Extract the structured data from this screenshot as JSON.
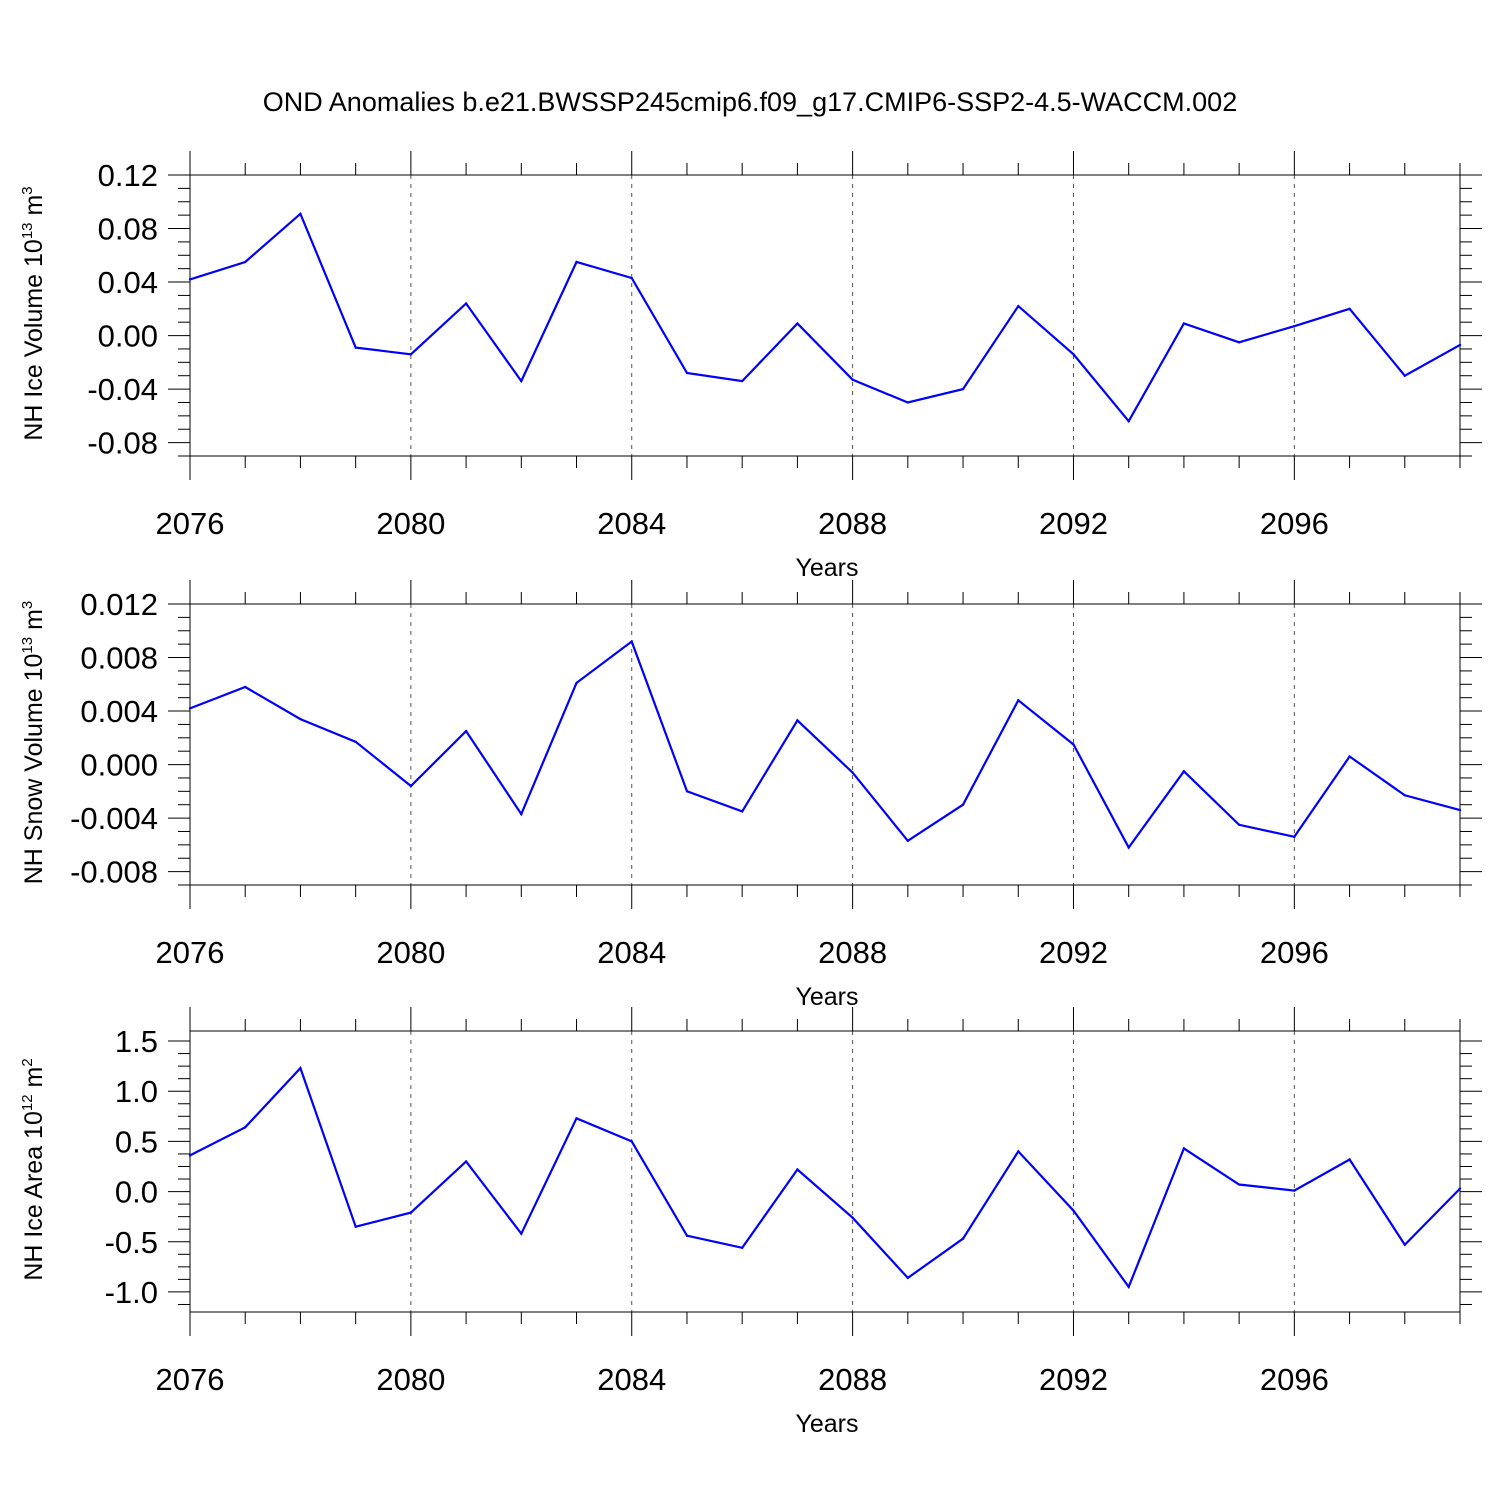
{
  "title": "OND Anomalies b.e21.BWSSP245cmip6.f09_g17.CMIP6-SSP2-4.5-WACCM.002",
  "line_color": "#0000ff",
  "chart_data": [
    {
      "type": "line",
      "ylabel": {
        "text": "NH Ice Volume 10",
        "exp": "13",
        "unit": " m",
        "unit_exp": "3"
      },
      "xlabel": "Years",
      "xlim": [
        2076,
        2099
      ],
      "ylim": [
        -0.09,
        0.12
      ],
      "xticks": [
        2076,
        2080,
        2084,
        2088,
        2092,
        2096
      ],
      "yticks": [
        -0.08,
        -0.04,
        0.0,
        0.04,
        0.08,
        0.12
      ],
      "ytick_labels": [
        "-0.08",
        "-0.04",
        "0.00",
        "0.04",
        "0.08",
        "0.12"
      ],
      "x": [
        2076,
        2077,
        2078,
        2079,
        2080,
        2081,
        2082,
        2083,
        2084,
        2085,
        2086,
        2087,
        2088,
        2089,
        2090,
        2091,
        2092,
        2093,
        2094,
        2095,
        2096,
        2097,
        2098,
        2099
      ],
      "values": [
        0.042,
        0.055,
        0.091,
        -0.009,
        -0.014,
        0.024,
        -0.034,
        0.055,
        0.043,
        -0.028,
        -0.034,
        0.009,
        -0.033,
        -0.05,
        -0.04,
        0.022,
        -0.014,
        -0.064,
        0.009,
        -0.005,
        0.007,
        0.02,
        -0.03,
        -0.007
      ]
    },
    {
      "type": "line",
      "ylabel": {
        "text": "NH Snow Volume 10",
        "exp": "13",
        "unit": " m",
        "unit_exp": "3"
      },
      "xlabel": "Years",
      "xlim": [
        2076,
        2099
      ],
      "ylim": [
        -0.009,
        0.012
      ],
      "xticks": [
        2076,
        2080,
        2084,
        2088,
        2092,
        2096
      ],
      "yticks": [
        -0.008,
        -0.004,
        0.0,
        0.004,
        0.008,
        0.012
      ],
      "ytick_labels": [
        "-0.008",
        "-0.004",
        "0.000",
        "0.004",
        "0.008",
        "0.012"
      ],
      "x": [
        2076,
        2077,
        2078,
        2079,
        2080,
        2081,
        2082,
        2083,
        2084,
        2085,
        2086,
        2087,
        2088,
        2089,
        2090,
        2091,
        2092,
        2093,
        2094,
        2095,
        2096,
        2097,
        2098,
        2099
      ],
      "values": [
        0.0042,
        0.0058,
        0.0034,
        0.0017,
        -0.0016,
        0.0025,
        -0.0037,
        0.0061,
        0.0092,
        -0.002,
        -0.0035,
        0.0033,
        -0.0006,
        -0.0057,
        -0.003,
        0.0048,
        0.0015,
        -0.0062,
        -0.0005,
        -0.0045,
        -0.0054,
        0.0006,
        -0.0023,
        -0.0034
      ]
    },
    {
      "type": "line",
      "ylabel": {
        "text": "NH Ice Area 10",
        "exp": "12",
        "unit": " m",
        "unit_exp": "2"
      },
      "xlabel": "Years",
      "xlim": [
        2076,
        2099
      ],
      "ylim": [
        -1.2,
        1.6
      ],
      "xticks": [
        2076,
        2080,
        2084,
        2088,
        2092,
        2096
      ],
      "yticks": [
        -1.0,
        -0.5,
        0.0,
        0.5,
        1.0,
        1.5
      ],
      "ytick_labels": [
        "-1.0",
        "-0.5",
        "0.0",
        "0.5",
        "1.0",
        "1.5"
      ],
      "x": [
        2076,
        2077,
        2078,
        2079,
        2080,
        2081,
        2082,
        2083,
        2084,
        2085,
        2086,
        2087,
        2088,
        2089,
        2090,
        2091,
        2092,
        2093,
        2094,
        2095,
        2096,
        2097,
        2098,
        2099
      ],
      "values": [
        0.36,
        0.64,
        1.23,
        -0.35,
        -0.21,
        0.3,
        -0.42,
        0.73,
        0.5,
        -0.44,
        -0.56,
        0.22,
        -0.26,
        -0.86,
        -0.47,
        0.4,
        -0.19,
        -0.95,
        0.43,
        0.07,
        0.01,
        0.32,
        -0.53,
        0.03
      ]
    }
  ]
}
